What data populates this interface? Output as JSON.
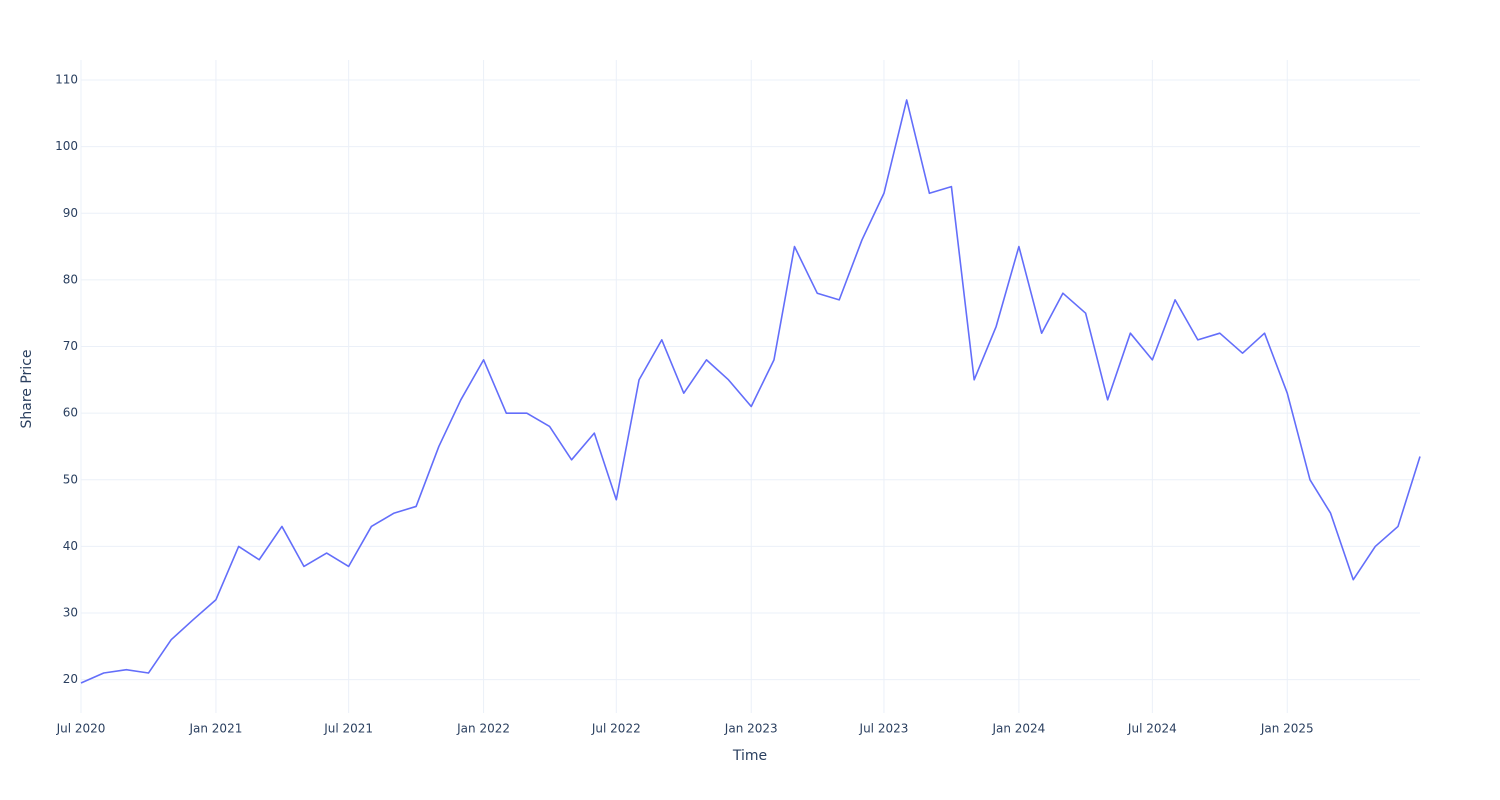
{
  "chart_data": {
    "type": "line",
    "x_label": "Time",
    "y_label": "Share Price",
    "color": "#636efa",
    "grid": true,
    "x": [
      "2020-07",
      "2020-08",
      "2020-09",
      "2020-10",
      "2020-11",
      "2020-12",
      "2021-01",
      "2021-02",
      "2021-03",
      "2021-04",
      "2021-05",
      "2021-06",
      "2021-07",
      "2021-08",
      "2021-09",
      "2021-10",
      "2021-11",
      "2021-12",
      "2022-01",
      "2022-02",
      "2022-03",
      "2022-04",
      "2022-05",
      "2022-06",
      "2022-07",
      "2022-08",
      "2022-09",
      "2022-10",
      "2022-11",
      "2022-12",
      "2023-01",
      "2023-02",
      "2023-03",
      "2023-04",
      "2023-05",
      "2023-06",
      "2023-07",
      "2023-08",
      "2023-09",
      "2023-10",
      "2023-11",
      "2023-12",
      "2024-01",
      "2024-02",
      "2024-03",
      "2024-04",
      "2024-05",
      "2024-06",
      "2024-07",
      "2024-08",
      "2024-09",
      "2024-10",
      "2024-11",
      "2024-12",
      "2025-01",
      "2025-02",
      "2025-03",
      "2025-04",
      "2025-05",
      "2025-06",
      "2025-07"
    ],
    "values": [
      19.5,
      21,
      21.5,
      21,
      26,
      29,
      32,
      40,
      38,
      43,
      37,
      39,
      37,
      43,
      45,
      46,
      55,
      62,
      68,
      60,
      60,
      58,
      53,
      57,
      47,
      65,
      71,
      63,
      68,
      65,
      61,
      68,
      85,
      78,
      77,
      86,
      93,
      107,
      93,
      94,
      65,
      73,
      85,
      72,
      78,
      75,
      62,
      72,
      68,
      77,
      71,
      72,
      69,
      72,
      63,
      50,
      45,
      35,
      40,
      43,
      53.5
    ],
    "xlim": [
      "2020-07",
      "2025-07"
    ],
    "xticks": [
      {
        "value": "2020-07",
        "label": "Jul 2020"
      },
      {
        "value": "2021-01",
        "label": "Jan 2021"
      },
      {
        "value": "2021-07",
        "label": "Jul 2021"
      },
      {
        "value": "2022-01",
        "label": "Jan 2022"
      },
      {
        "value": "2022-07",
        "label": "Jul 2022"
      },
      {
        "value": "2023-01",
        "label": "Jan 2023"
      },
      {
        "value": "2023-07",
        "label": "Jul 2023"
      },
      {
        "value": "2024-01",
        "label": "Jan 2024"
      },
      {
        "value": "2024-07",
        "label": "Jul 2024"
      },
      {
        "value": "2025-01",
        "label": "Jan 2025"
      }
    ],
    "ylim": [
      15,
      113
    ],
    "yticks": [
      20,
      30,
      40,
      50,
      60,
      70,
      80,
      90,
      100,
      110
    ]
  }
}
